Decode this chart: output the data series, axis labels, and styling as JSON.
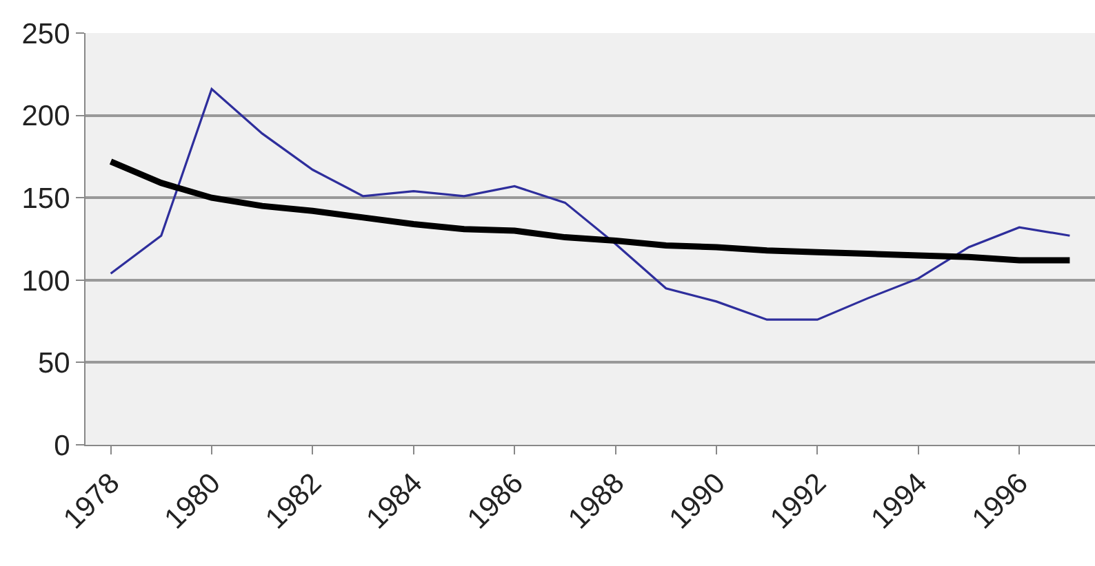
{
  "chart_data": {
    "type": "line",
    "x": [
      1978,
      1979,
      1980,
      1981,
      1982,
      1983,
      1984,
      1985,
      1986,
      1987,
      1988,
      1989,
      1990,
      1991,
      1992,
      1993,
      1994,
      1995,
      1996,
      1997
    ],
    "series": [
      {
        "color": "#2e2e9c",
        "values": [
          104,
          127,
          216,
          189,
          167,
          151,
          154,
          151,
          157,
          147,
          122,
          95,
          87,
          76,
          76,
          89,
          101,
          120,
          132,
          127
        ]
      },
      {
        "type": "line",
        "color": "#000000",
        "x": [
          1978,
          1979,
          1980,
          1981,
          1982,
          1983,
          1984,
          1985,
          1986,
          1987,
          1988,
          1989,
          1990,
          1991,
          1992,
          1993,
          1994,
          1995,
          1996,
          1997
        ],
        "values": [
          172,
          159,
          150,
          145,
          142,
          138,
          134,
          131,
          130,
          126,
          124,
          121,
          120,
          118,
          117,
          116,
          115,
          114,
          112,
          112
        ]
      }
    ],
    "xlim": [
      1977.5,
      1997.5
    ],
    "xticks": [
      1978,
      1980,
      1982,
      1984,
      1986,
      1988,
      1990,
      1992,
      1994,
      1996
    ],
    "ylim": [
      0,
      250
    ],
    "yticks": [
      0,
      50,
      100,
      150,
      200,
      250
    ],
    "grid": "y",
    "marker": "none",
    "line_style": "solid"
  }
}
